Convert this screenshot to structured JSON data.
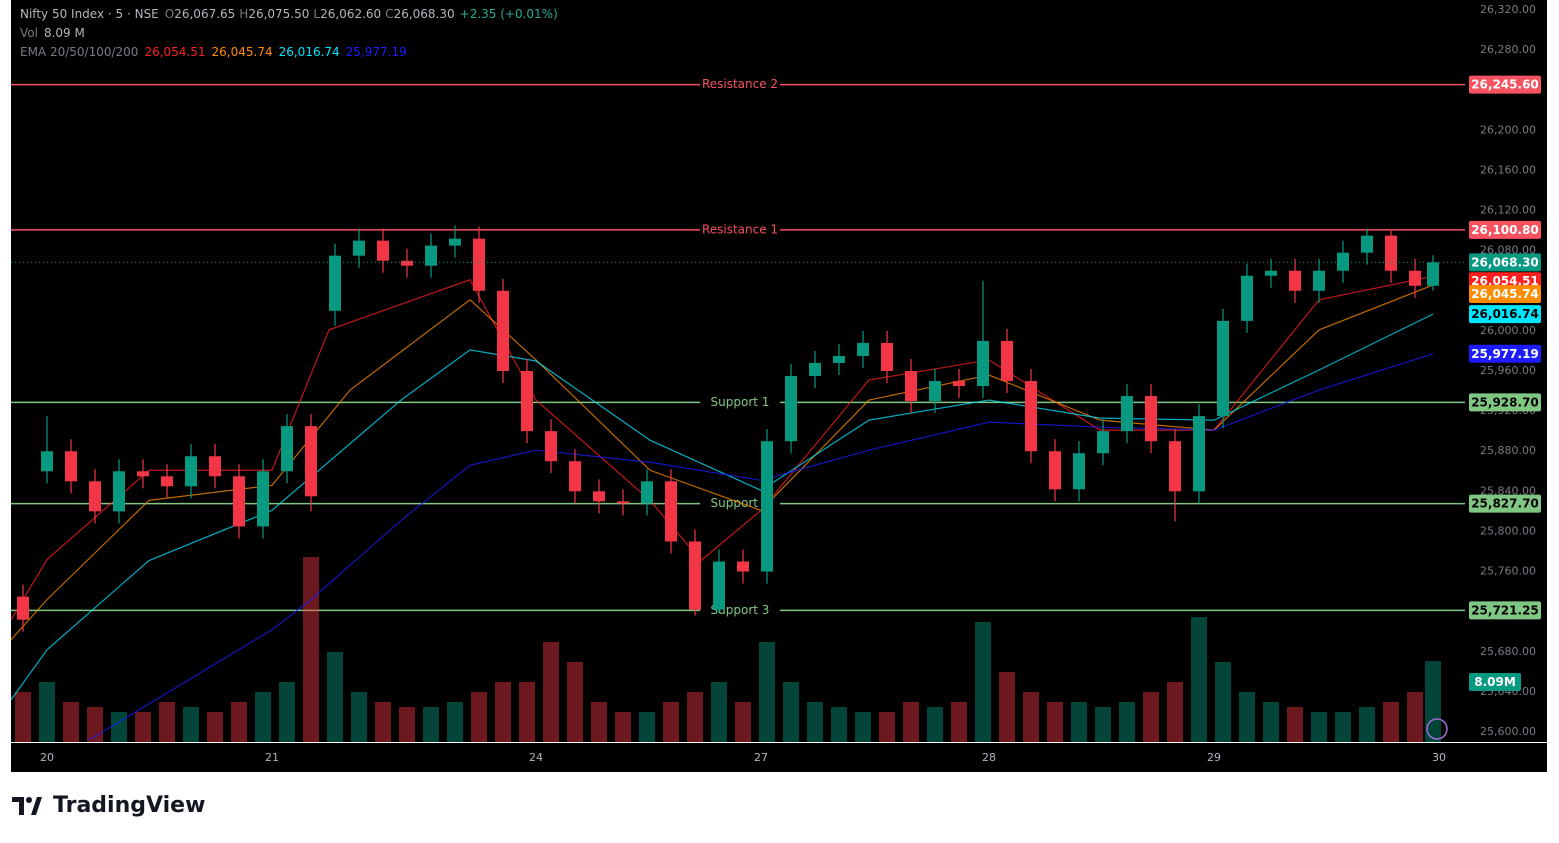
{
  "header": {
    "symbol": "Nifty 50 Index · 5 · NSE",
    "ohlc": [
      {
        "key": "O",
        "value": "26,067.65"
      },
      {
        "key": "H",
        "value": "26,075.50"
      },
      {
        "key": "L",
        "value": "26,062.60"
      },
      {
        "key": "C",
        "value": "26,068.30"
      }
    ],
    "change": "+2.35 (+0.01%)",
    "vol_key": "Vol",
    "vol_value": "8.09 M"
  },
  "chart_data": {
    "type": "candlestick",
    "x": [
      -8,
      0,
      8,
      16,
      24,
      32,
      40,
      48,
      56,
      64,
      72,
      80,
      88,
      96,
      104,
      112,
      120,
      128,
      136,
      144,
      152,
      160,
      168,
      176,
      184,
      192,
      200,
      208,
      216,
      224,
      232,
      240,
      248,
      256,
      264,
      272,
      280,
      288,
      296,
      304,
      312,
      320,
      328,
      336,
      344,
      352,
      360,
      368,
      376,
      384,
      392,
      400,
      408,
      416,
      424,
      432,
      440,
      448,
      456,
      462
    ],
    "open": [
      25735,
      25860,
      25880,
      25850,
      25820,
      25860,
      25855,
      25845,
      25875,
      25855,
      25805,
      25860,
      25905,
      26020,
      26075,
      26090,
      26070,
      26065,
      26085,
      26092,
      26040,
      25960,
      25900,
      25870,
      25840,
      25830,
      25828,
      25850,
      25790,
      25722,
      25770,
      25760,
      25890,
      25955,
      25968,
      25975,
      25988,
      25960,
      25930,
      25950,
      25945,
      25990,
      25950,
      25880,
      25842,
      25878,
      25900,
      25935,
      25890,
      25840,
      25915,
      26010,
      26055,
      26060,
      26040,
      26060,
      26078,
      26095,
      26060,
      26045
    ],
    "high": [
      25747,
      25915,
      25892,
      25862,
      25872,
      25872,
      25867,
      25887,
      25887,
      25867,
      25872,
      25917,
      25917,
      26087,
      26102,
      26102,
      26082,
      26097,
      26105,
      26104,
      26052,
      25972,
      25912,
      25882,
      25852,
      25842,
      25862,
      25862,
      25802,
      25782,
      25782,
      25902,
      25967,
      25980,
      25987,
      26000,
      26000,
      25972,
      25962,
      25962,
      26050,
      26002,
      25962,
      25892,
      25890,
      25912,
      25947,
      25947,
      25902,
      25927,
      26022,
      26067,
      26072,
      26072,
      26072,
      26090,
      26102,
      26100,
      26072,
      26075.5
    ],
    "low": [
      25700,
      25848,
      25838,
      25808,
      25808,
      25843,
      25833,
      25833,
      25843,
      25793,
      25793,
      25848,
      25820,
      26005,
      26063,
      26058,
      26053,
      26053,
      26073,
      26028,
      25948,
      25888,
      25858,
      25828,
      25818,
      25816,
      25816,
      25778,
      25716,
      25718,
      25748,
      25748,
      25878,
      25943,
      25956,
      25963,
      25948,
      25918,
      25918,
      25933,
      25933,
      25938,
      25868,
      25830,
      25830,
      25866,
      25888,
      25878,
      25810,
      25828,
      25903,
      25998,
      26043,
      26028,
      26028,
      26048,
      26066,
      26048,
      26033,
      26040
    ],
    "close": [
      25712,
      25880,
      25850,
      25820,
      25860,
      25855,
      25845,
      25875,
      25855,
      25805,
      25860,
      25905,
      25835,
      26075,
      26090,
      26070,
      26065,
      26085,
      26092,
      26040,
      25960,
      25900,
      25870,
      25840,
      25830,
      25828,
      25850,
      25790,
      25722,
      25770,
      25760,
      25890,
      25955,
      25968,
      25975,
      25988,
      25960,
      25930,
      25950,
      25945,
      25990,
      25950,
      25880,
      25842,
      25878,
      25900,
      25935,
      25890,
      25840,
      25915,
      26010,
      26055,
      26060,
      26040,
      26060,
      26078,
      26095,
      26060,
      26045,
      26068.3
    ],
    "volume": [
      5,
      6,
      4,
      3.5,
      3,
      3,
      4,
      3.5,
      3,
      4,
      5,
      6,
      18.5,
      9,
      5,
      4,
      3.5,
      3.5,
      4,
      5,
      6,
      6,
      10,
      8,
      4,
      3,
      3,
      4,
      5,
      6,
      4,
      10,
      6,
      4,
      3.5,
      3,
      3,
      4,
      3.5,
      4,
      12,
      7,
      5,
      4,
      4,
      3.5,
      4,
      5,
      6,
      12.5,
      8,
      5,
      4,
      3.5,
      3,
      3,
      3.5,
      4,
      5,
      8.09
    ],
    "volume_label": "8.09M",
    "up_color": "#089981",
    "down_color": "#f23645",
    "xlim": [
      -12,
      500
    ],
    "xticks": [
      {
        "value": 0,
        "label": "20"
      },
      {
        "value": 75,
        "label": "21"
      },
      {
        "value": 163,
        "label": "24"
      },
      {
        "value": 238,
        "label": "27"
      },
      {
        "value": 314,
        "label": "28"
      },
      {
        "value": 389,
        "label": "29"
      },
      {
        "value": 464,
        "label": "30"
      }
    ],
    "ylim": [
      25590,
      26330
    ],
    "yticks": [
      {
        "value": 25600,
        "label": "25,600.00"
      },
      {
        "value": 25640,
        "label": "25,640.00"
      },
      {
        "value": 25680,
        "label": "25,680.00"
      },
      {
        "value": 25720,
        "label": "25,720.00"
      },
      {
        "value": 25760,
        "label": "25,760.00"
      },
      {
        "value": 25800,
        "label": "25,800.00"
      },
      {
        "value": 25840,
        "label": "25,840.00"
      },
      {
        "value": 25880,
        "label": "25,880.00"
      },
      {
        "value": 25920,
        "label": "25,920.00"
      },
      {
        "value": 25960,
        "label": "25,960.00"
      },
      {
        "value": 26000,
        "label": "26,000.00"
      },
      {
        "value": 26040,
        "label": "26,040.00"
      },
      {
        "value": 26080,
        "label": "26,080.00"
      },
      {
        "value": 26120,
        "label": "26,120.00"
      },
      {
        "value": 26160,
        "label": "26,160.00"
      },
      {
        "value": 26200,
        "label": "26,200.00"
      },
      {
        "value": 26240,
        "label": "26,240.00"
      },
      {
        "value": 26280,
        "label": "26,280.00"
      },
      {
        "value": 26320,
        "label": "26,320.00"
      }
    ],
    "grid": false,
    "last_price_label": "26,068.30",
    "levels": [
      {
        "label": "Resistance 2",
        "value": 26245.6,
        "value_label": "26,245.60",
        "color": "#f7525f"
      },
      {
        "label": "Resistance 1",
        "value": 26100.8,
        "value_label": "26,100.80",
        "color": "#f7525f"
      },
      {
        "label": "Support 1",
        "value": 25928.7,
        "value_label": "25,928.70",
        "color": "#81c784"
      },
      {
        "label": "Support 2",
        "value": 25827.7,
        "value_label": "25,827.70",
        "color": "#81c784"
      },
      {
        "label": "Support 3",
        "value": 25721.25,
        "value_label": "25,721.25",
        "color": "#81c784"
      }
    ],
    "indicator": {
      "label": "EMA 20/50/100/200",
      "series": [
        {
          "color": "#ff1f1f",
          "x": [
            -12,
            0,
            34,
            75,
            94,
            141,
            163,
            201,
            218,
            238,
            274,
            314,
            351,
            389,
            424,
            462
          ],
          "values": [
            25712,
            25772,
            25861,
            25861,
            26001,
            26051,
            25931,
            25831,
            25771,
            25821,
            25951,
            25971,
            25901,
            25901,
            26031,
            26054.51
          ],
          "last_label": "26,054.51"
        },
        {
          "color": "#ff8c00",
          "x": [
            -12,
            0,
            34,
            75,
            101,
            141,
            163,
            201,
            238,
            274,
            314,
            351,
            389,
            424,
            462
          ],
          "values": [
            25692,
            25732,
            25831,
            25846,
            25941,
            26031,
            25971,
            25861,
            25821,
            25931,
            25956,
            25911,
            25901,
            26001,
            26045.74
          ],
          "last_label": "26,045.74"
        },
        {
          "color": "#00e5ff",
          "x": [
            -12,
            0,
            34,
            75,
            118,
            141,
            163,
            201,
            238,
            274,
            314,
            351,
            389,
            424,
            462
          ],
          "values": [
            25632,
            25682,
            25771,
            25821,
            25931,
            25981,
            25970,
            25891,
            25841,
            25911,
            25931,
            25913,
            25911,
            25961,
            26016.74
          ],
          "last_label": "26,016.74"
        },
        {
          "color": "#1c1cff",
          "x": [
            14,
            75,
            88,
            118,
            141,
            163,
            201,
            238,
            274,
            314,
            351,
            389,
            424,
            462
          ],
          "values": [
            25592,
            25702,
            25732,
            25811,
            25866,
            25881,
            25869,
            25851,
            25881,
            25909,
            25904,
            25901,
            25941,
            25977.19
          ],
          "last_label": "25,977.19"
        }
      ]
    }
  },
  "footer": {
    "brand": "TradingView"
  }
}
